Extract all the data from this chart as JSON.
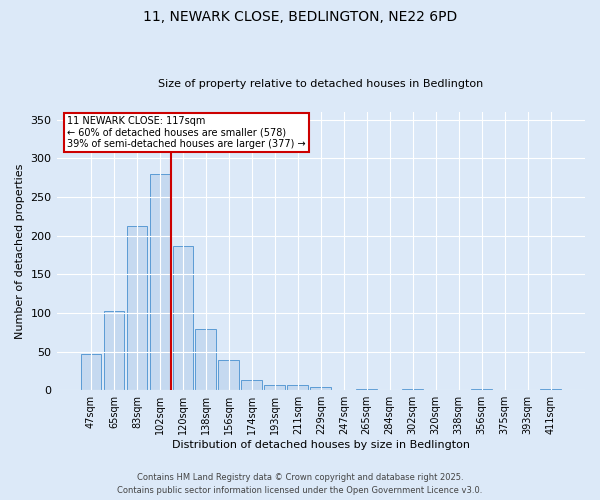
{
  "title1": "11, NEWARK CLOSE, BEDLINGTON, NE22 6PD",
  "title2": "Size of property relative to detached houses in Bedlington",
  "xlabel": "Distribution of detached houses by size in Bedlington",
  "ylabel": "Number of detached properties",
  "categories": [
    "47sqm",
    "65sqm",
    "83sqm",
    "102sqm",
    "120sqm",
    "138sqm",
    "156sqm",
    "174sqm",
    "193sqm",
    "211sqm",
    "229sqm",
    "247sqm",
    "265sqm",
    "284sqm",
    "302sqm",
    "320sqm",
    "338sqm",
    "356sqm",
    "375sqm",
    "393sqm",
    "411sqm"
  ],
  "values": [
    47,
    102,
    213,
    280,
    186,
    79,
    39,
    13,
    7,
    7,
    4,
    0,
    1,
    0,
    2,
    0,
    0,
    2,
    0,
    0,
    2
  ],
  "bar_color": "#c5d9f0",
  "bar_edge_color": "#5b9bd5",
  "reference_line_label": "11 NEWARK CLOSE: 117sqm",
  "annotation_line1": "← 60% of detached houses are smaller (578)",
  "annotation_line2": "39% of semi-detached houses are larger (377) →",
  "annotation_box_color": "#ffffff",
  "annotation_box_edge": "#cc0000",
  "ref_line_color": "#cc0000",
  "ref_line_x": 3.5,
  "ylim": [
    0,
    360
  ],
  "yticks": [
    0,
    50,
    100,
    150,
    200,
    250,
    300,
    350
  ],
  "footer1": "Contains HM Land Registry data © Crown copyright and database right 2025.",
  "footer2": "Contains public sector information licensed under the Open Government Licence v3.0.",
  "bg_color": "#dce9f8",
  "plot_bg_color": "#dce9f8",
  "title1_fontsize": 10,
  "title2_fontsize": 8,
  "xlabel_fontsize": 8,
  "ylabel_fontsize": 8,
  "tick_fontsize": 7,
  "footer_fontsize": 6,
  "annot_fontsize": 7
}
